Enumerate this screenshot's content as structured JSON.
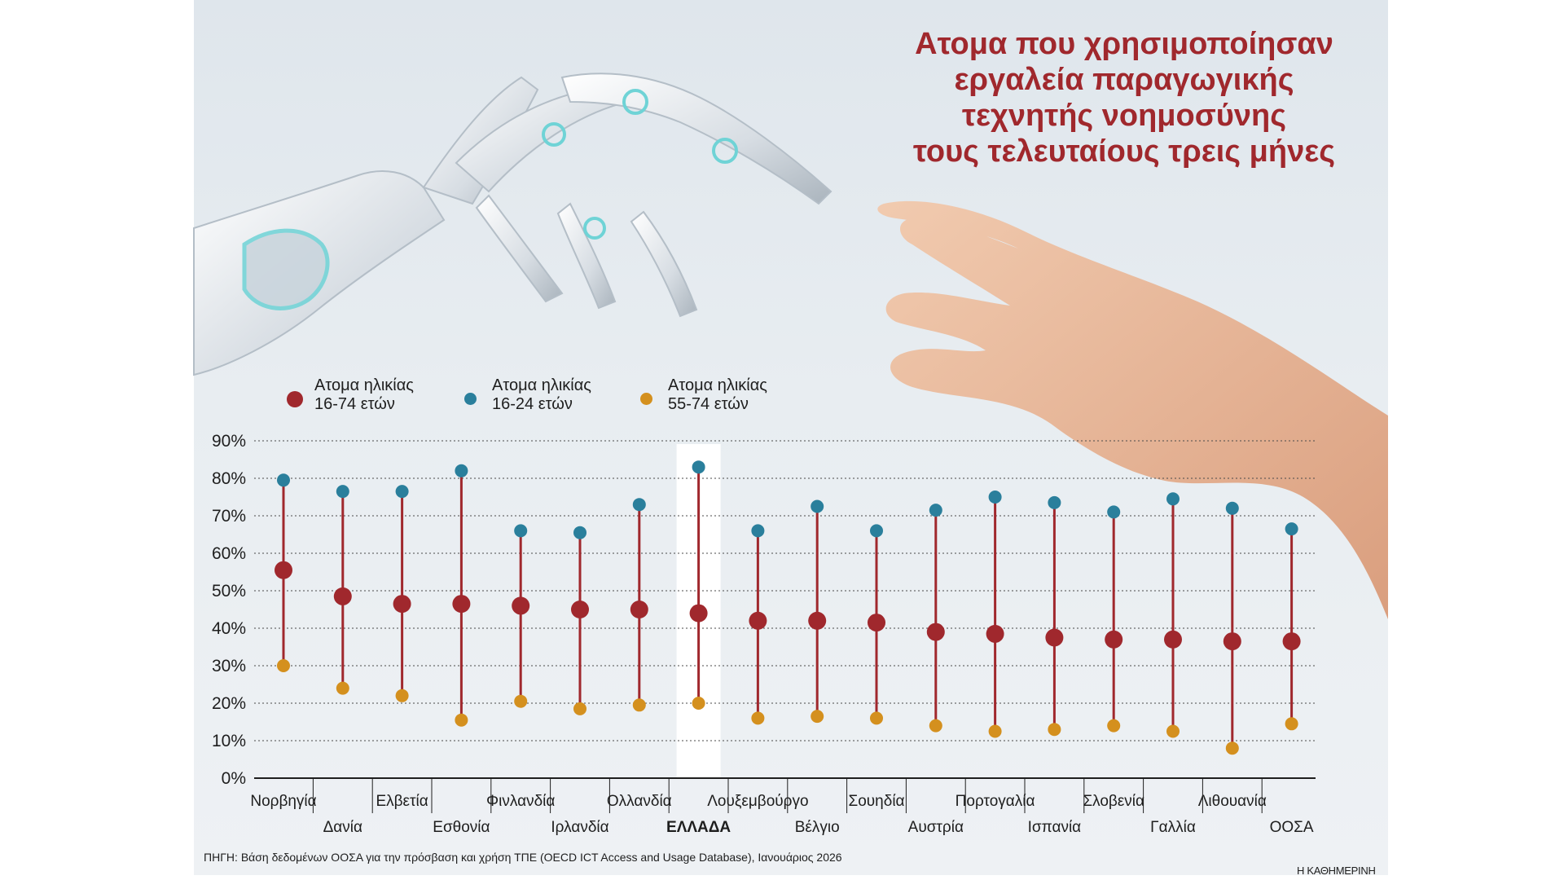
{
  "title_lines": [
    "Ατομα που χρησιμοποίησαν",
    "εργαλεία παραγωγικής",
    "τεχνητής νοημοσύνης",
    "τους τελευταίους τρεις μήνες"
  ],
  "legend": [
    {
      "line1": "Ατομα ηλικίας",
      "line2": "16-74 ετών",
      "color": "#a0282d"
    },
    {
      "line1": "Ατομα ηλικίας",
      "line2": "16-24 ετών",
      "color": "#2a7f9c"
    },
    {
      "line1": "Ατομα ηλικίας",
      "line2": "55-74 ετών",
      "color": "#d4901e"
    }
  ],
  "source": "ΠΗΓΗ: Βάση δεδομένων ΟΟΣΑ για την πρόσβαση και χρήση ΤΠΕ (OECD ICT Access and Usage Database), Ιανουάριος 2026",
  "brand": "Η ΚΑΘΗΜΕΡΙΝΗ",
  "chart_data": {
    "type": "scatter",
    "yticks": [
      "0%",
      "10%",
      "20%",
      "30%",
      "40%",
      "50%",
      "60%",
      "70%",
      "80%",
      "90%"
    ],
    "ylim": [
      0,
      90
    ],
    "highlight": "ΕΛΛΑΔΑ",
    "categories": [
      "Νορβηγία",
      "Δανία",
      "Ελβετία",
      "Εσθονία",
      "Φινλανδία",
      "Ιρλανδία",
      "Ολλανδία",
      "ΕΛΛΑΔΑ",
      "Λουξεμβούργο",
      "Βέλγιο",
      "Σουηδία",
      "Αυστρία",
      "Πορτογαλία",
      "Ισπανία",
      "Σλοβενία",
      "Γαλλία",
      "Λιθουανία",
      "ΟΟΣΑ"
    ],
    "series": [
      {
        "name": "16-74",
        "color": "#a0282d",
        "values": [
          55.5,
          48.5,
          46.5,
          46.5,
          46,
          45,
          45,
          44,
          42,
          42,
          41.5,
          39,
          38.5,
          37.5,
          37,
          37,
          36.5,
          36.5
        ]
      },
      {
        "name": "16-24",
        "color": "#2a7f9c",
        "values": [
          79.5,
          76.5,
          76.5,
          82,
          66,
          65.5,
          73,
          83,
          66,
          72.5,
          66,
          71.5,
          75,
          73.5,
          71,
          74.5,
          72,
          66.5
        ]
      },
      {
        "name": "55-74",
        "color": "#d4901e",
        "values": [
          30,
          24,
          22,
          15.5,
          20.5,
          18.5,
          19.5,
          20,
          16,
          16.5,
          16,
          14,
          12.5,
          13,
          14,
          12.5,
          8,
          14.5
        ]
      }
    ]
  }
}
